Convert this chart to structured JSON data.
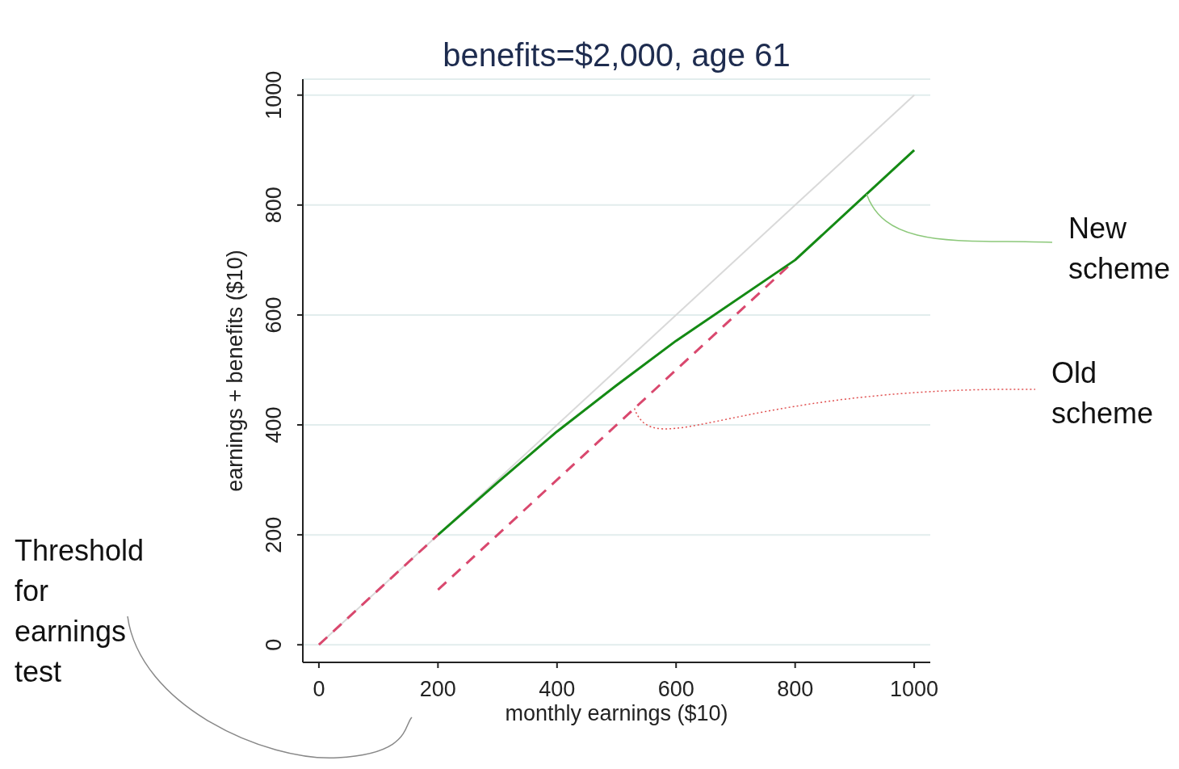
{
  "chart_data": {
    "type": "line",
    "title": "benefits=$2,000, age 61",
    "xlabel": "monthly earnings ($10)",
    "ylabel": "earnings + benefits ($10)",
    "series": [
      {
        "x": [
          0,
          1000
        ],
        "values": [
          0,
          1000
        ],
        "color": "#d9d9d9",
        "line_style": "solid"
      },
      {
        "x": [
          0,
          200
        ],
        "values": [
          0,
          200
        ],
        "color": "#d9486e",
        "line_style": "dashed"
      },
      {
        "x": [
          200,
          790
        ],
        "values": [
          100,
          690
        ],
        "color": "#d9486e",
        "line_style": "dashed"
      },
      {
        "x": [
          200,
          300,
          400,
          500,
          600,
          800,
          1000
        ],
        "values": [
          200,
          295,
          388,
          472,
          553,
          700,
          900
        ],
        "color": "#148a14",
        "line_style": "solid"
      }
    ],
    "xlim": [
      -27,
      1027
    ],
    "ylim": [
      -32,
      1029
    ],
    "xticks": [
      0,
      200,
      400,
      600,
      800,
      1000
    ],
    "yticks": [
      0,
      200,
      400,
      600,
      800,
      1000
    ],
    "grid": "y",
    "marker": "none",
    "annotations": [
      {
        "text": "New scheme",
        "x": 920,
        "y": 820
      },
      {
        "text": "Old scheme",
        "x": 530,
        "y": 430
      },
      "Threshold for earnings test"
    ]
  }
}
